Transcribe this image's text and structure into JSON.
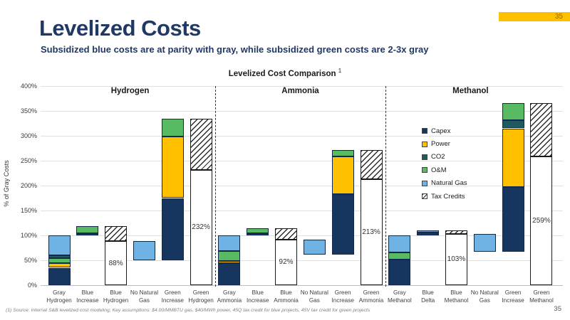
{
  "header": {
    "title": "Levelized Costs",
    "subtitle": "Subsidized blue costs are at parity with gray, while subsidized green costs are 2-3x gray",
    "page_badge": "35"
  },
  "footer": {
    "footnote": "(1) Source: Internal S&B levelized cost modeling;  Key assumptions: $4.00/MMBTU gas, $40/MWh power, 45Q tax credit for blue projects, 45V tax credit for green projects",
    "page_number": "35"
  },
  "colors": {
    "accent_yellow": "#FFC000",
    "title_navy": "#1F3864"
  },
  "chart_data": {
    "type": "bar",
    "subtype": "stacked-waterfall",
    "title_text": "Levelized Cost Comparison",
    "title_sup": "1",
    "ylabel": "% of Gray Costs",
    "ylim": [
      0,
      400
    ],
    "ytick_step": 50,
    "yticks": [
      "0%",
      "50%",
      "100%",
      "150%",
      "200%",
      "250%",
      "300%",
      "350%",
      "400%"
    ],
    "grid": true,
    "legend_position": "middle-right",
    "legend": [
      {
        "name": "Capex",
        "key": "capex"
      },
      {
        "name": "Power",
        "key": "power"
      },
      {
        "name": "CO2",
        "key": "co2"
      },
      {
        "name": "O&M",
        "key": "om"
      },
      {
        "name": "Natural Gas",
        "key": "gas"
      },
      {
        "name": "Tax Credits",
        "key": "credits"
      }
    ],
    "series_colors": {
      "capex": "#16355F",
      "power": "#FFC000",
      "co2": "#1E5A60",
      "om": "#58BB63",
      "gas": "#6FB2E4"
    },
    "groups": [
      {
        "name": "Hydrogen",
        "bars": [
          {
            "label": [
              "Gray",
              "Hydrogen"
            ],
            "segments": [
              {
                "s": "capex",
                "from": 0,
                "to": 35
              },
              {
                "s": "power",
                "from": 35,
                "to": 44
              },
              {
                "s": "om",
                "from": 44,
                "to": 54
              },
              {
                "s": "co2",
                "from": 54,
                "to": 60
              },
              {
                "s": "gas",
                "from": 60,
                "to": 100
              }
            ]
          },
          {
            "label": [
              "Blue",
              "Increase"
            ],
            "segments": [
              {
                "s": "capex",
                "from": 100,
                "to": 104
              },
              {
                "s": "om",
                "from": 104,
                "to": 118
              }
            ]
          },
          {
            "label": [
              "Blue",
              "Hydrogen"
            ],
            "segments": [
              {
                "s": "net",
                "from": 0,
                "to": 88,
                "text": "88%"
              },
              {
                "s": "credits",
                "from": 88,
                "to": 118
              }
            ]
          },
          {
            "label": [
              "No Natural",
              "Gas"
            ],
            "segments": [
              {
                "s": "gas",
                "from": 50,
                "to": 88
              }
            ]
          },
          {
            "label": [
              "Green",
              "Increase"
            ],
            "segments": [
              {
                "s": "capex",
                "from": 50,
                "to": 175
              },
              {
                "s": "power",
                "from": 175,
                "to": 298
              },
              {
                "s": "om",
                "from": 298,
                "to": 335
              }
            ]
          },
          {
            "label": [
              "Green",
              "Hydrogen"
            ],
            "segments": [
              {
                "s": "net",
                "from": 0,
                "to": 232,
                "text": "232%"
              },
              {
                "s": "credits",
                "from": 232,
                "to": 335
              }
            ]
          }
        ]
      },
      {
        "name": "Ammonia",
        "bars": [
          {
            "label": [
              "Gray",
              "Ammonia"
            ],
            "segments": [
              {
                "s": "capex",
                "from": 0,
                "to": 44
              },
              {
                "s": "power",
                "from": 44,
                "to": 48
              },
              {
                "s": "om",
                "from": 48,
                "to": 68
              },
              {
                "s": "gas",
                "from": 68,
                "to": 100
              }
            ]
          },
          {
            "label": [
              "Blue",
              "Increase"
            ],
            "segments": [
              {
                "s": "capex",
                "from": 100,
                "to": 105
              },
              {
                "s": "om",
                "from": 105,
                "to": 115
              }
            ]
          },
          {
            "label": [
              "Blue",
              "Ammonia"
            ],
            "segments": [
              {
                "s": "net",
                "from": 0,
                "to": 92,
                "text": "92%"
              },
              {
                "s": "credits",
                "from": 92,
                "to": 115
              }
            ]
          },
          {
            "label": [
              "No Natural",
              "Gas"
            ],
            "segments": [
              {
                "s": "gas",
                "from": 61,
                "to": 91
              }
            ]
          },
          {
            "label": [
              "Green",
              "Increase"
            ],
            "segments": [
              {
                "s": "capex",
                "from": 61,
                "to": 183
              },
              {
                "s": "power",
                "from": 183,
                "to": 258
              },
              {
                "s": "om",
                "from": 258,
                "to": 272
              }
            ]
          },
          {
            "label": [
              "Green",
              "Ammonia"
            ],
            "segments": [
              {
                "s": "net",
                "from": 0,
                "to": 213,
                "text": "213%"
              },
              {
                "s": "credits",
                "from": 213,
                "to": 272
              }
            ]
          }
        ]
      },
      {
        "name": "Methanol",
        "bars": [
          {
            "label": [
              "Gray",
              "Methanol"
            ],
            "segments": [
              {
                "s": "capex",
                "from": 0,
                "to": 51
              },
              {
                "s": "om",
                "from": 51,
                "to": 66
              },
              {
                "s": "gas",
                "from": 66,
                "to": 100
              }
            ]
          },
          {
            "label": [
              "Blue",
              "Delta"
            ],
            "segments": [
              {
                "s": "capex",
                "from": 100,
                "to": 106
              },
              {
                "s": "om",
                "from": 106,
                "to": 110
              }
            ]
          },
          {
            "label": [
              "Blue",
              "Methanol"
            ],
            "segments": [
              {
                "s": "net",
                "from": 0,
                "to": 103,
                "text": "103%"
              },
              {
                "s": "credits",
                "from": 103,
                "to": 110
              }
            ]
          },
          {
            "label": [
              "No Natural",
              "Gas"
            ],
            "segments": [
              {
                "s": "gas",
                "from": 67,
                "to": 103
              }
            ]
          },
          {
            "label": [
              "Green",
              "Increase"
            ],
            "segments": [
              {
                "s": "capex",
                "from": 67,
                "to": 197
              },
              {
                "s": "power",
                "from": 197,
                "to": 315
              },
              {
                "s": "co2",
                "from": 315,
                "to": 332
              },
              {
                "s": "om",
                "from": 332,
                "to": 366
              }
            ]
          },
          {
            "label": [
              "Green",
              "Methanol"
            ],
            "segments": [
              {
                "s": "net",
                "from": 0,
                "to": 259,
                "text": "259%"
              },
              {
                "s": "credits",
                "from": 259,
                "to": 366
              }
            ]
          }
        ]
      }
    ]
  }
}
